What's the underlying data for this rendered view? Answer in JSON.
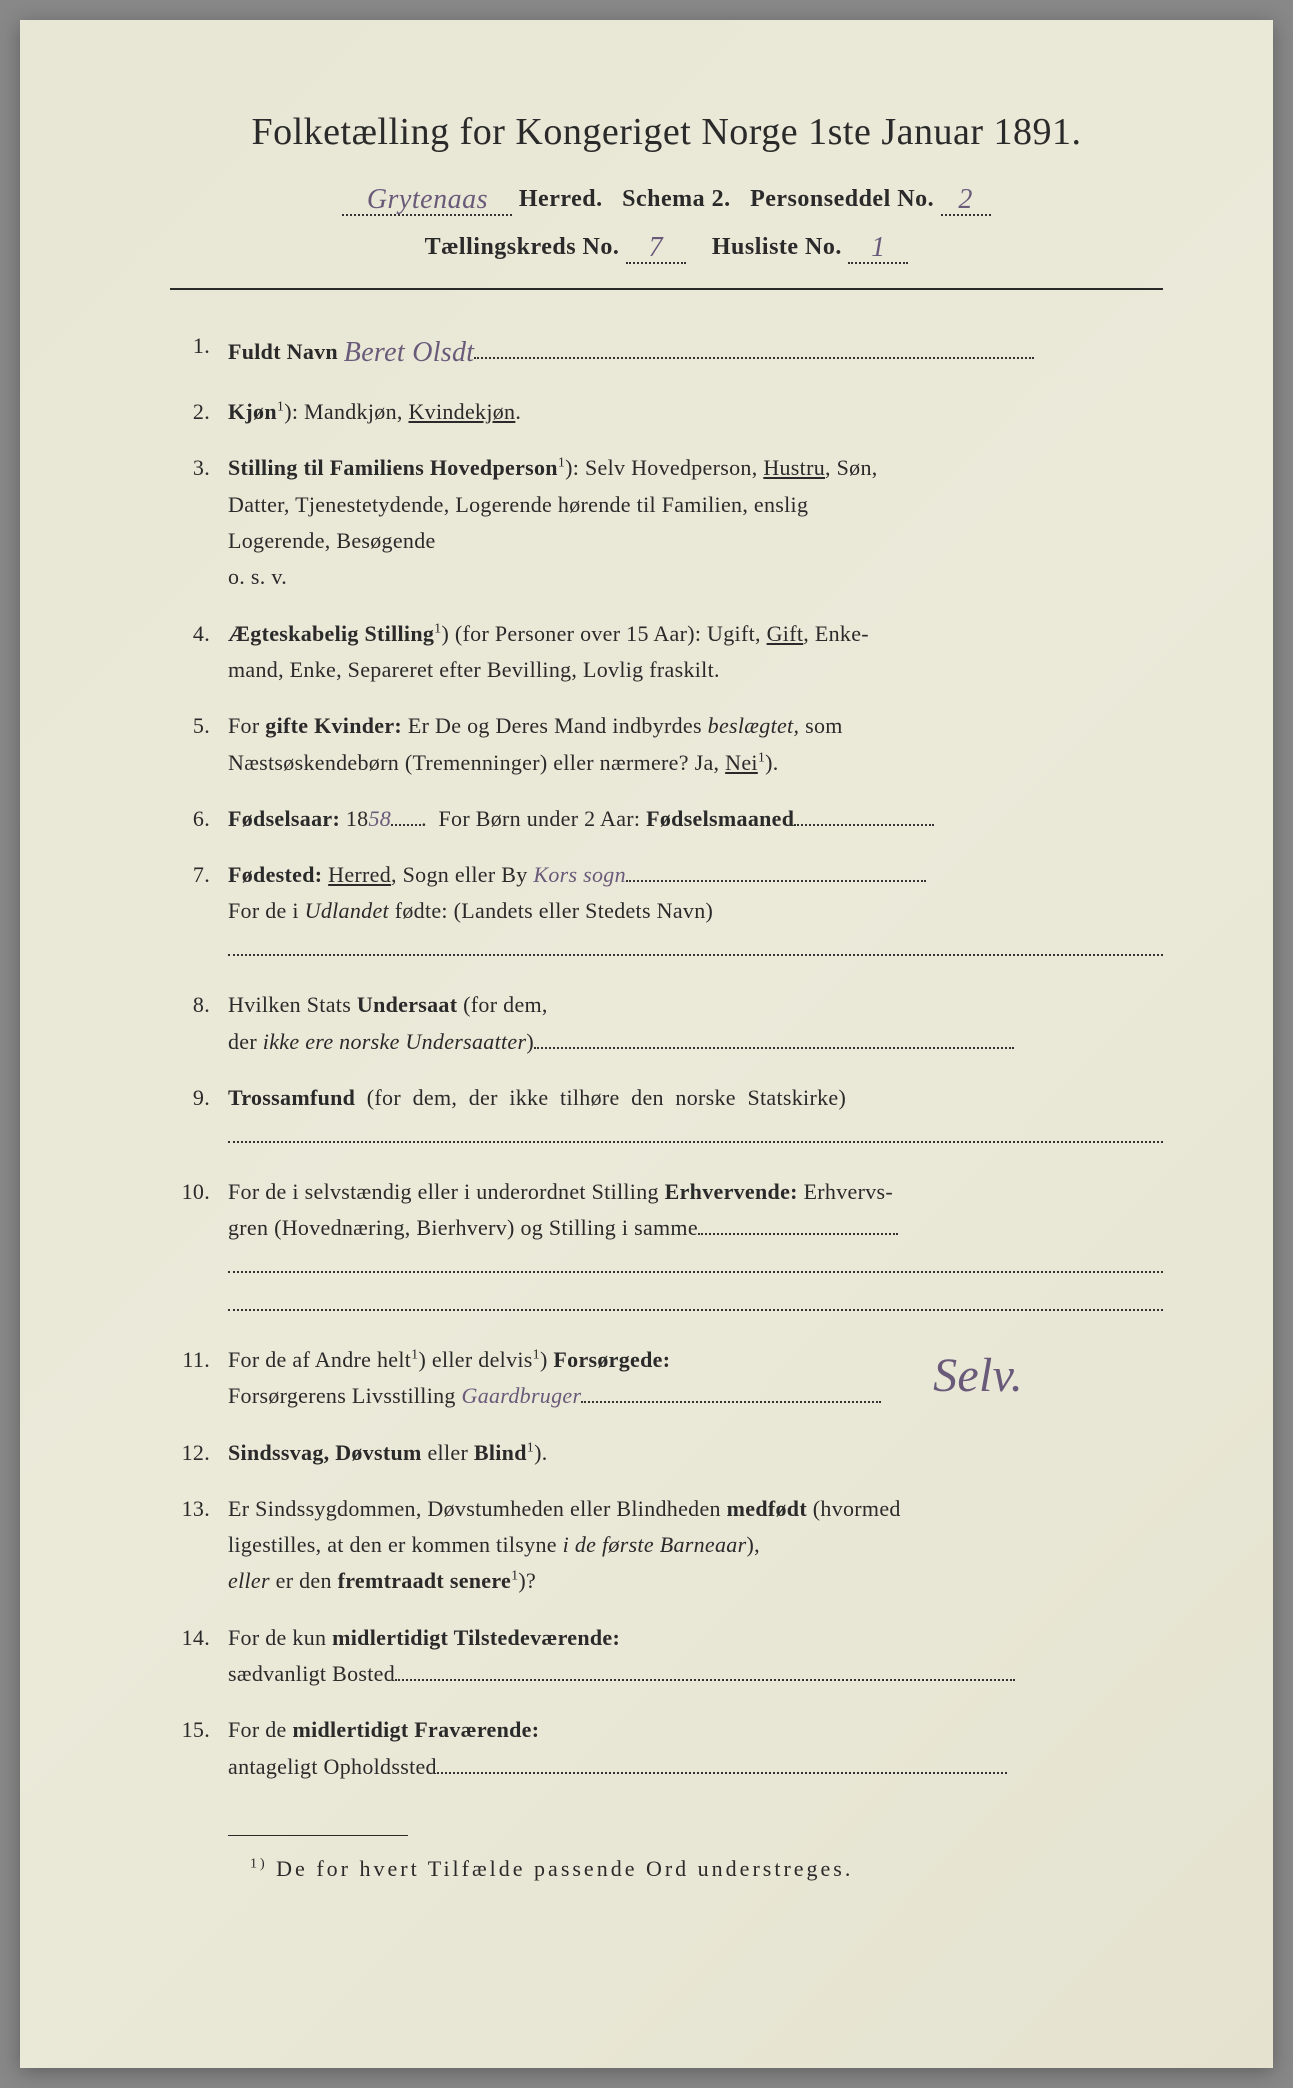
{
  "title": "Folketælling for Kongeriget Norge 1ste Januar 1891.",
  "header": {
    "herred_hw": "Grytenaas",
    "herred_label": "Herred.",
    "schema_label": "Schema 2.",
    "personseddel_label": "Personseddel No.",
    "personseddel_no": "2",
    "kreds_label": "Tællingskreds No.",
    "kreds_no": "7",
    "husliste_label": "Husliste No.",
    "husliste_no": "1"
  },
  "items": [
    {
      "num": "1.",
      "label": "Fuldt Navn",
      "value_hw": "Beret Olsdt",
      "trailing_dots": true
    },
    {
      "num": "2.",
      "html": "<span class='bold'>Kjøn</span><span class='sup'>1</span>): Mandkjøn, <span class='underline'>Kvindekjøn</span>."
    },
    {
      "num": "3.",
      "html": "<span class='bold'>Stilling til Familiens Hovedperson</span><span class='sup'>1</span>): Selv Hovedperson, <span class='underline'>Hustru</span>, Søn,<br>Datter, Tjenestetydende, Logerende hørende til Familien, enslig<br>Logerende, Besøgende<br>o. s. v."
    },
    {
      "num": "4.",
      "html": "<span class='bold'>Ægteskabelig Stilling</span><span class='sup'>1</span>) (for Personer over 15 Aar): Ugift, <span class='underline'>Gift</span>, Enke-<br>mand, Enke, Separeret efter Bevilling, Lovlig fraskilt."
    },
    {
      "num": "5.",
      "html": "For <span class='bold'>gifte Kvinder:</span> Er De og Deres Mand indbyrdes <span class='italic'>beslægtet,</span> som<br>Næstsøskendebørn (Tremenninger) eller nærmere? Ja, <span class='underline'>Nei</span><span class='sup'>1</span>)."
    },
    {
      "num": "6.",
      "html": "<span class='bold'>Fødselsaar:</span> 18<span class='hw-inline'>58</span><span class='dotted-rest' style='min-width:30px'></span>.&nbsp;&nbsp;For Børn under 2 Aar: <span class='bold'>Fødselsmaaned</span><span class='dotted-rest' style='min-width:140px'></span>"
    },
    {
      "num": "7.",
      "html": "<span class='bold'>Fødested:</span> <span class='underline'>Herred</span>, Sogn eller By <span class='hw-inline'>Kors sogn</span><span class='dotted-rest' style='min-width:300px'></span><br>For de i <span class='italic'>Udlandet</span> fødte: (Landets eller Stedets Navn)<br><span class='dotted-line'></span>"
    },
    {
      "num": "8.",
      "html": "Hvilken Stats <span class='bold'>Undersaat</span> (for dem,<br>der <span class='italic'>ikke ere norske Undersaatter</span>)<span class='dotted-rest' style='min-width:480px'></span>"
    },
    {
      "num": "9.",
      "html": "<span class='bold'>Trossamfund</span>&nbsp;&nbsp;(for&nbsp;&nbsp;dem,&nbsp;&nbsp;der&nbsp;&nbsp;ikke&nbsp;&nbsp;tilhøre&nbsp;&nbsp;den&nbsp;&nbsp;norske&nbsp;&nbsp;Statskirke)<br><span class='dotted-line'></span>"
    },
    {
      "num": "10.",
      "html": "For de i selvstændig eller i underordnet Stilling <span class='bold'>Erhvervende:</span> Erhvervs-<br>gren (Hovednæring, Bierhverv) og Stilling i samme<span class='dotted-rest' style='min-width:200px'></span><br><span class='dotted-line'></span><br><span class='dotted-line'></span>"
    },
    {
      "num": "11.",
      "html": "For de af Andre helt<span class='sup'>1</span>) eller delvis<span class='sup'>1</span>) <span class='bold'>Forsørgede:</span><br>Forsørgerens Livsstilling <span class='hw-inline'>Gaardbruger</span><span class='dotted-rest' style='min-width:300px'></span>",
      "right_hw": "Selv."
    },
    {
      "num": "12.",
      "html": "<span class='bold'>Sindssvag, Døvstum</span> eller <span class='bold'>Blind</span><span class='sup'>1</span>)."
    },
    {
      "num": "13.",
      "html": "Er Sindssygdommen, Døvstumheden eller Blindheden <span class='bold'>medfødt</span> (hvormed<br>ligestilles, at den er kommen tilsyne <span class='italic'>i de første Barneaar</span>),<br><span class='italic'>eller</span> er den <span class='bold'>fremtraadt senere</span><span class='sup'>1</span>)?"
    },
    {
      "num": "14.",
      "html": "For de kun <span class='bold'>midlertidigt Tilstedeværende:</span><br>sædvanligt Bosted<span class='dotted-rest' style='min-width:620px'></span>"
    },
    {
      "num": "15.",
      "html": "For de <span class='bold'>midlertidigt Fraværende:</span><br>antageligt Opholdssted<span class='dotted-rest' style='min-width:570px'></span>"
    }
  ],
  "footnote": {
    "marker": "1)",
    "text": "De for hvert Tilfælde passende Ord understreges."
  },
  "colors": {
    "paper": "#e8e6d4",
    "ink": "#2a2a2a",
    "handwriting": "#6a5a7a"
  }
}
